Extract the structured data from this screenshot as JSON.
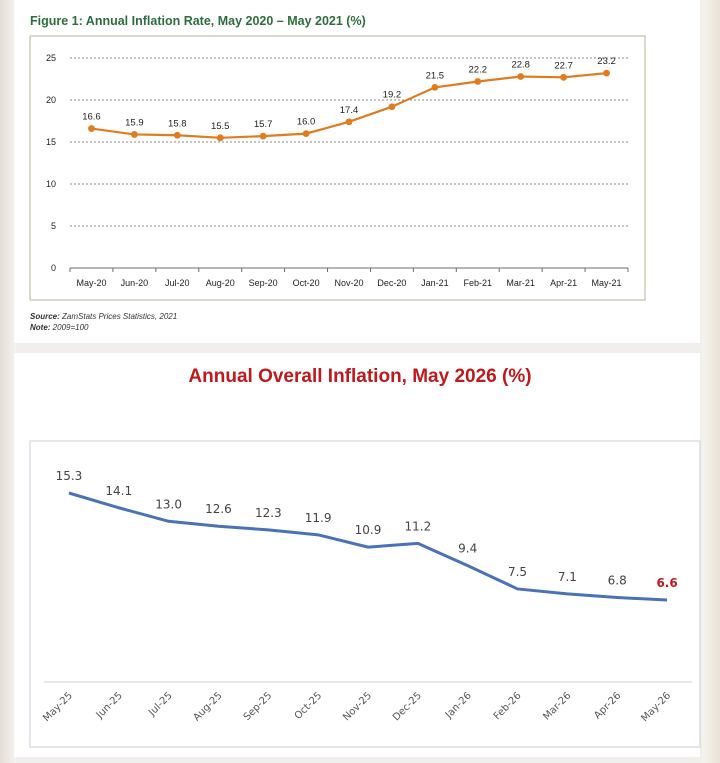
{
  "figure1": {
    "title": "Figure 1: Annual Inflation Rate, May 2020 – May 2021 (%)",
    "source_label": "Source:",
    "source_text": " ZamStats Prices Statistics, 2021",
    "note_label": "Note:",
    "note_text": " 2009=100"
  },
  "figure2": {
    "title": "Annual Overall Inflation, May 2026 (%)"
  },
  "colors": {
    "line1": "#e07b1e",
    "line2": "#4a72b8",
    "highlight_label": "#c0191c"
  },
  "chart_data": [
    {
      "type": "line",
      "title": "Figure 1: Annual Inflation Rate, May 2020 – May 2021 (%)",
      "categories": [
        "May-20",
        "Jun-20",
        "Jul-20",
        "Aug-20",
        "Sep-20",
        "Oct-20",
        "Nov-20",
        "Dec-20",
        "Jan-21",
        "Feb-21",
        "Mar-21",
        "Apr-21",
        "May-21"
      ],
      "series": [
        {
          "values": [
            16.6,
            15.9,
            15.8,
            15.5,
            15.7,
            16.0,
            17.4,
            19.2,
            21.5,
            22.2,
            22.8,
            22.7,
            23.2
          ],
          "labels": [
            "16.6",
            "15.9",
            "15.8",
            "15.5",
            "15.7",
            "16.0",
            "17.4",
            "19.2",
            "21.5",
            "22.2",
            "22.8",
            "22.7",
            "23.2"
          ]
        }
      ],
      "ylim": [
        0,
        25
      ],
      "yticks": [
        0,
        5,
        10,
        15,
        20,
        25
      ],
      "grid": true,
      "markers": true
    },
    {
      "type": "line",
      "title": "Annual Overall Inflation, May 2026 (%)",
      "categories": [
        "May-25",
        "Jun-25",
        "Jul-25",
        "Aug-25",
        "Sep-25",
        "Oct-25",
        "Nov-25",
        "Dec-25",
        "Jan-26",
        "Feb-26",
        "Mar-26",
        "Apr-26",
        "May-26"
      ],
      "series": [
        {
          "values": [
            15.3,
            14.1,
            13.0,
            12.6,
            12.3,
            11.9,
            10.9,
            11.2,
            9.4,
            7.5,
            7.1,
            6.8,
            6.6
          ],
          "labels": [
            "15.3",
            "14.1",
            "13.0",
            "12.6",
            "12.3",
            "11.9",
            "10.9",
            "11.2",
            "9.4",
            "7.5",
            "7.1",
            "6.8",
            "6.6"
          ]
        }
      ],
      "grid": false,
      "markers": false,
      "highlight_last_label": true
    }
  ]
}
